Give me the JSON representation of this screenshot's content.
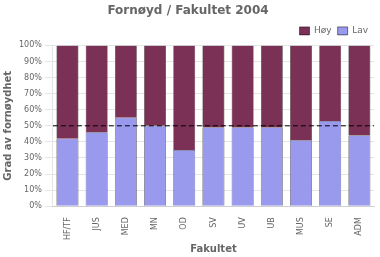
{
  "chart_data": {
    "type": "bar",
    "stacked": true,
    "title": "Fornøyd / Fakultet 2004",
    "xlabel": "Fakultet",
    "ylabel": "Grad av fornøydhet",
    "categories": [
      "HF/TF",
      "JUS",
      "MED",
      "MN",
      "OD",
      "SV",
      "UV",
      "UB",
      "MUS",
      "SE",
      "ADM"
    ],
    "series": [
      {
        "name": "Lav",
        "color": "#9999ee",
        "values": [
          42,
          46,
          55,
          50,
          35,
          49,
          49,
          49,
          41,
          53,
          44
        ]
      },
      {
        "name": "Høy",
        "color": "#7b3055",
        "values": [
          58,
          54,
          45,
          50,
          65,
          51,
          51,
          51,
          59,
          47,
          56
        ]
      }
    ],
    "ylim": [
      0,
      100
    ],
    "yticks": [
      {
        "value": 0,
        "label": "0%"
      },
      {
        "value": 10,
        "label": "10%"
      },
      {
        "value": 20,
        "label": "20%"
      },
      {
        "value": 30,
        "label": "30%"
      },
      {
        "value": 40,
        "label": "40%"
      },
      {
        "value": 50,
        "label": "50%"
      },
      {
        "value": 60,
        "label": "60%"
      },
      {
        "value": 70,
        "label": "70%"
      },
      {
        "value": 80,
        "label": "80%"
      },
      {
        "value": 90,
        "label": "90%"
      },
      {
        "value": 100,
        "label": "100%"
      }
    ],
    "annotations": [
      {
        "type": "hline",
        "y": 50
      }
    ],
    "grid": true,
    "legend": "upper right"
  }
}
